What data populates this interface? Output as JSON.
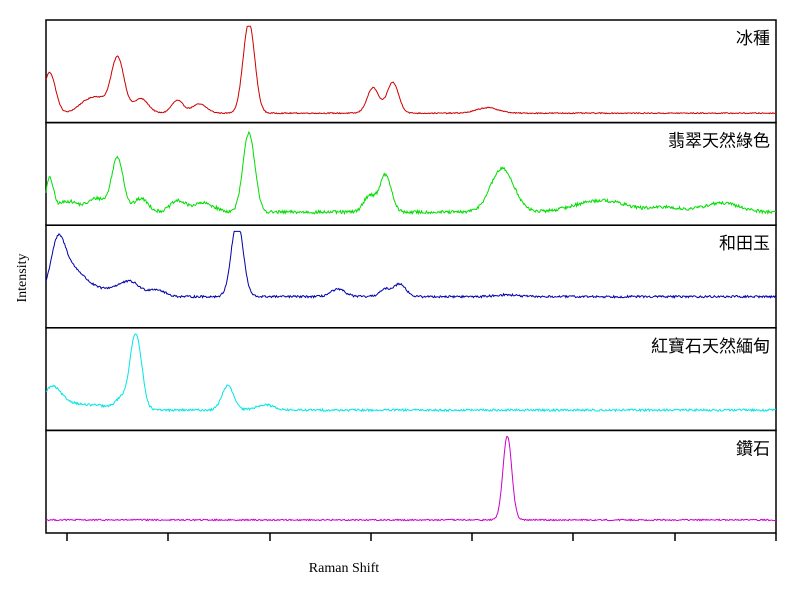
{
  "chart_data": {
    "type": "line",
    "layout": "stacked-panels",
    "xlabel": "Raman Shift",
    "ylabel": "Intensity",
    "x_ticks_labeled": false,
    "y_ticks_labeled": false,
    "grid": false,
    "x_range": [
      0,
      100
    ],
    "panels": [
      {
        "label": "冰種",
        "color": "#cc0000",
        "baseline": 0.06,
        "noise": 0.006,
        "peaks": [
          [
            0.5,
            0.45,
            0.8
          ],
          [
            5.5,
            0.12,
            1.2
          ],
          [
            7.3,
            0.13,
            1.0
          ],
          [
            9.8,
            0.62,
            0.9
          ],
          [
            13.0,
            0.16,
            1.0
          ],
          [
            18.0,
            0.14,
            0.8
          ],
          [
            21.0,
            0.1,
            1.0
          ],
          [
            27.8,
            1.0,
            0.8
          ],
          [
            44.8,
            0.28,
            0.8
          ],
          [
            47.5,
            0.34,
            0.8
          ],
          [
            60.5,
            0.06,
            1.5
          ]
        ]
      },
      {
        "label": "翡翠天然綠色",
        "color": "#00dd00",
        "baseline": 0.1,
        "noise": 0.018,
        "peaks": [
          [
            0.5,
            0.35,
            0.5
          ],
          [
            3.0,
            0.12,
            1.5
          ],
          [
            7.0,
            0.15,
            1.2
          ],
          [
            9.8,
            0.6,
            0.8
          ],
          [
            13.0,
            0.15,
            1.0
          ],
          [
            18.0,
            0.12,
            1.0
          ],
          [
            21.5,
            0.1,
            1.5
          ],
          [
            27.8,
            0.88,
            0.8
          ],
          [
            44.3,
            0.18,
            0.8
          ],
          [
            46.5,
            0.41,
            0.8
          ],
          [
            62.5,
            0.48,
            1.6
          ],
          [
            76.0,
            0.13,
            3.5
          ],
          [
            85.0,
            0.05,
            2.0
          ],
          [
            92.5,
            0.1,
            2.5
          ]
        ]
      },
      {
        "label": "和田玉",
        "color": "#0000aa",
        "baseline": 0.3,
        "noise": 0.012,
        "peaks": [
          [
            1.6,
            0.55,
            1.0
          ],
          [
            3.5,
            0.25,
            1.5
          ],
          [
            6.0,
            0.1,
            2.0
          ],
          [
            10.5,
            0.12,
            1.5
          ],
          [
            12.0,
            0.08,
            1.0
          ],
          [
            15.0,
            0.08,
            1.2
          ],
          [
            26.2,
            0.85,
            0.8
          ],
          [
            40.0,
            0.08,
            1.0
          ],
          [
            46.5,
            0.08,
            0.8
          ],
          [
            48.5,
            0.14,
            0.8
          ],
          [
            63.0,
            0.02,
            1.5
          ]
        ]
      },
      {
        "label": "紅寶石天然緬甸",
        "color": "#00e5e5",
        "baseline": 0.18,
        "noise": 0.012,
        "peaks": [
          [
            0.8,
            0.25,
            1.2
          ],
          [
            3.5,
            0.07,
            1.5
          ],
          [
            7.0,
            0.05,
            1.5
          ],
          [
            10.2,
            0.12,
            0.8
          ],
          [
            12.3,
            0.85,
            0.8
          ],
          [
            24.9,
            0.27,
            0.8
          ],
          [
            30.0,
            0.06,
            1.2
          ]
        ]
      },
      {
        "label": "鑽石",
        "color": "#cc00cc",
        "baseline": 0.1,
        "noise": 0.008,
        "peaks": [
          [
            63.2,
            0.93,
            0.6
          ]
        ]
      }
    ]
  }
}
